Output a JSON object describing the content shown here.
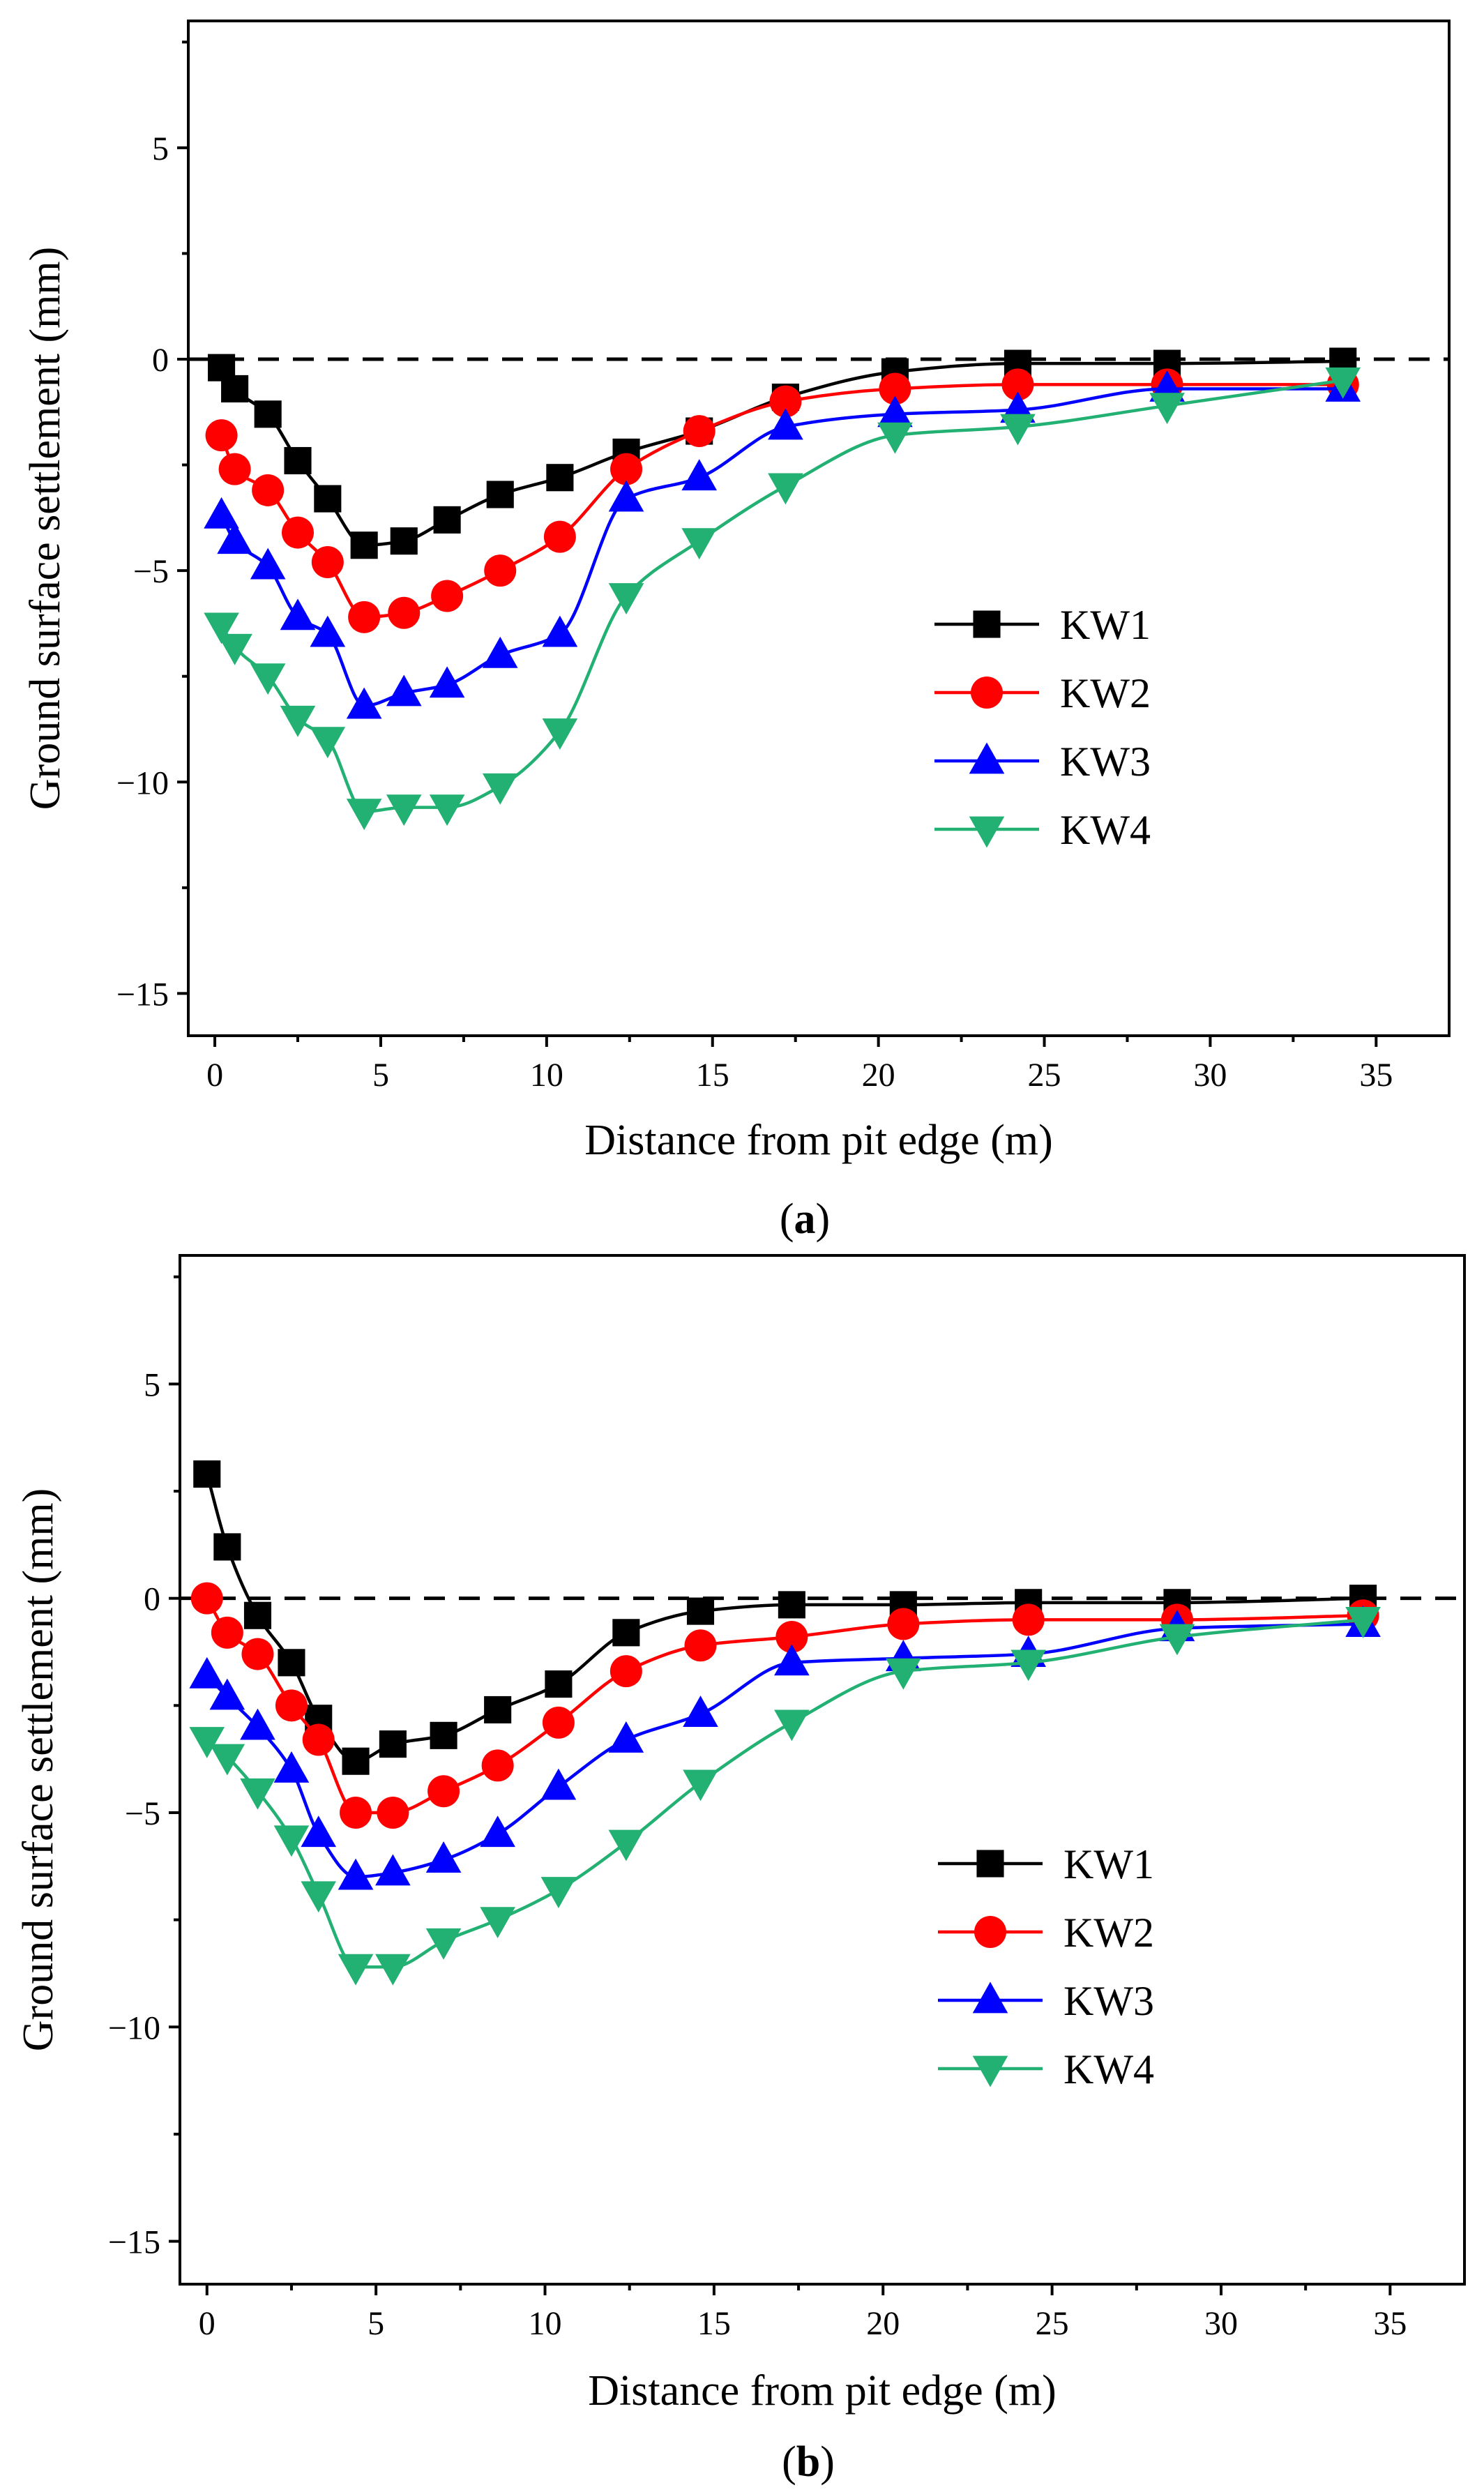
{
  "figure": {
    "panels": [
      "(a)",
      "(b)"
    ]
  },
  "chart_data": [
    {
      "type": "line",
      "panel_label": "a",
      "title": "",
      "xlabel": "Distance from pit edge (m)",
      "ylabel": "Ground surface settlement (mm)",
      "xlim": [
        -0.8,
        37.2
      ],
      "ylim": [
        -16,
        8
      ],
      "xticks": [
        0,
        5,
        10,
        15,
        20,
        25,
        30,
        35
      ],
      "yticks": [
        -15,
        -10,
        -5,
        0,
        5
      ],
      "reference_line_y": 0,
      "legend_position": "center-right",
      "series": [
        {
          "name": "KW1",
          "color": "#000000",
          "marker": "square",
          "x": [
            0.2,
            0.6,
            1.6,
            2.5,
            3.4,
            4.5,
            5.7,
            7.0,
            8.6,
            10.4,
            12.4,
            14.6,
            17.2,
            20.5,
            24.2,
            28.7,
            34.0
          ],
          "y": [
            -0.2,
            -0.7,
            -1.3,
            -2.4,
            -3.3,
            -4.4,
            -4.3,
            -3.8,
            -3.2,
            -2.8,
            -2.2,
            -1.7,
            -0.9,
            -0.3,
            -0.1,
            -0.1,
            -0.05
          ]
        },
        {
          "name": "KW2",
          "color": "#ff0000",
          "marker": "circle",
          "x": [
            0.2,
            0.6,
            1.6,
            2.5,
            3.4,
            4.5,
            5.7,
            7.0,
            8.6,
            10.4,
            12.4,
            14.6,
            17.2,
            20.5,
            24.2,
            28.7,
            34.0
          ],
          "y": [
            -1.8,
            -2.6,
            -3.1,
            -4.1,
            -4.8,
            -6.1,
            -6.0,
            -5.6,
            -5.0,
            -4.2,
            -2.6,
            -1.7,
            -1.0,
            -0.7,
            -0.6,
            -0.6,
            -0.6
          ]
        },
        {
          "name": "KW3",
          "color": "#0000ff",
          "marker": "triangle-up",
          "x": [
            0.2,
            0.6,
            1.6,
            2.5,
            3.4,
            4.5,
            5.7,
            7.0,
            8.6,
            10.4,
            12.4,
            14.6,
            17.2,
            20.5,
            24.2,
            28.7,
            34.0
          ],
          "y": [
            -3.7,
            -4.3,
            -4.9,
            -6.1,
            -6.5,
            -8.2,
            -7.9,
            -7.7,
            -7.0,
            -6.5,
            -3.3,
            -2.8,
            -1.6,
            -1.3,
            -1.2,
            -0.7,
            -0.7
          ]
        },
        {
          "name": "KW4",
          "color": "#22b173",
          "marker": "triangle-down",
          "x": [
            0.2,
            0.6,
            1.6,
            2.5,
            3.4,
            4.5,
            5.7,
            7.0,
            8.6,
            10.4,
            12.4,
            14.6,
            17.2,
            20.5,
            24.2,
            28.7,
            34.0
          ],
          "y": [
            -6.3,
            -6.8,
            -7.5,
            -8.5,
            -9.0,
            -10.7,
            -10.6,
            -10.6,
            -10.1,
            -8.8,
            -5.6,
            -4.3,
            -3.0,
            -1.8,
            -1.6,
            -1.1,
            -0.5
          ]
        }
      ]
    },
    {
      "type": "line",
      "panel_label": "b",
      "title": "",
      "xlabel": "Distance from pit edge (m)",
      "ylabel": "Ground surface settlement (mm)",
      "xlim": [
        -0.8,
        37.2
      ],
      "ylim": [
        -16,
        8
      ],
      "xticks": [
        0,
        5,
        10,
        15,
        20,
        25,
        30,
        35
      ],
      "yticks": [
        -15,
        -10,
        -5,
        0,
        5
      ],
      "reference_line_y": 0,
      "legend_position": "center-right",
      "series": [
        {
          "name": "KW1",
          "color": "#000000",
          "marker": "square",
          "x": [
            0.0,
            0.6,
            1.5,
            2.5,
            3.3,
            4.4,
            5.5,
            7.0,
            8.6,
            10.4,
            12.4,
            14.6,
            17.3,
            20.6,
            24.3,
            28.7,
            34.2
          ],
          "y": [
            2.9,
            1.2,
            -0.4,
            -1.5,
            -2.8,
            -3.8,
            -3.4,
            -3.2,
            -2.6,
            -2.0,
            -0.8,
            -0.3,
            -0.15,
            -0.15,
            -0.1,
            -0.1,
            0.0
          ]
        },
        {
          "name": "KW2",
          "color": "#ff0000",
          "marker": "circle",
          "x": [
            0.0,
            0.6,
            1.5,
            2.5,
            3.3,
            4.4,
            5.5,
            7.0,
            8.6,
            10.4,
            12.4,
            14.6,
            17.3,
            20.6,
            24.3,
            28.7,
            34.2
          ],
          "y": [
            0.0,
            -0.8,
            -1.3,
            -2.5,
            -3.3,
            -5.0,
            -5.0,
            -4.5,
            -3.9,
            -2.9,
            -1.7,
            -1.1,
            -0.9,
            -0.6,
            -0.5,
            -0.5,
            -0.4
          ]
        },
        {
          "name": "KW3",
          "color": "#0000ff",
          "marker": "triangle-up",
          "x": [
            0.0,
            0.6,
            1.5,
            2.5,
            3.3,
            4.4,
            5.5,
            7.0,
            8.6,
            10.4,
            12.4,
            14.6,
            17.3,
            20.6,
            24.3,
            28.7,
            34.2
          ],
          "y": [
            -1.8,
            -2.3,
            -3.0,
            -4.0,
            -5.5,
            -6.5,
            -6.4,
            -6.1,
            -5.5,
            -4.4,
            -3.3,
            -2.7,
            -1.5,
            -1.4,
            -1.3,
            -0.7,
            -0.6
          ]
        },
        {
          "name": "KW4",
          "color": "#22b173",
          "marker": "triangle-down",
          "x": [
            0.0,
            0.6,
            1.5,
            2.5,
            3.3,
            4.4,
            5.5,
            7.0,
            8.6,
            10.4,
            12.4,
            14.6,
            17.3,
            20.6,
            24.3,
            28.7,
            34.2
          ],
          "y": [
            -3.3,
            -3.7,
            -4.5,
            -5.6,
            -6.9,
            -8.6,
            -8.6,
            -8.0,
            -7.5,
            -6.8,
            -5.7,
            -4.3,
            -2.9,
            -1.7,
            -1.5,
            -0.9,
            -0.5
          ]
        }
      ]
    }
  ]
}
